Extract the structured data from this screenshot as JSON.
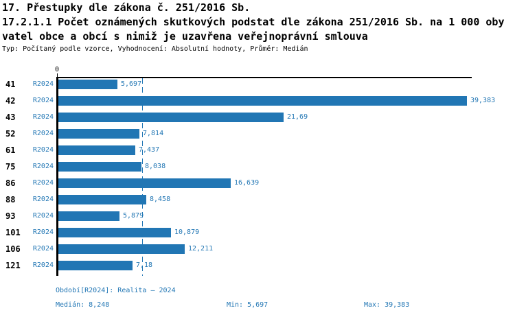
{
  "header": {
    "title_line1": "17. Přestupky dle zákona č. 251/2016 Sb.",
    "title_line2": "17.2.1.1 Počet oznámených skutkových podstat dle zákona 251/2016 Sb. na 1 000 oby",
    "title_line3": "vatel obce a obcí s nimiž je uzavřena veřejnoprávní smlouva",
    "subtitle": "Typ: Počítaný podle vzorce, Vyhodnocení: Absolutní hodnoty, Průměr: Medián"
  },
  "colors": {
    "accent_blue": "#2176B4",
    "axis_black": "#000000",
    "background": "#FFFFFF"
  },
  "chart_data": {
    "type": "bar",
    "orientation": "horizontal",
    "title": "17.2.1.1 Počet oznámených skutkových podstat dle zákona 251/2016 Sb. na 1 000 obyvatel obce a obcí s nimiž je uzavřena veřejnoprávní smlouva",
    "categories": [
      "41",
      "42",
      "43",
      "52",
      "61",
      "75",
      "86",
      "88",
      "93",
      "101",
      "106",
      "121"
    ],
    "series_label": "R2024",
    "values": [
      5.697,
      39.383,
      21.69,
      7.814,
      7.437,
      8.038,
      16.639,
      8.458,
      5.879,
      10.879,
      12.211,
      7.18
    ],
    "value_labels": [
      "5,697",
      "39,383",
      "21,69",
      "7,814",
      "7,437",
      "8,038",
      "16,639",
      "8,458",
      "5,879",
      "10,879",
      "12,211",
      "7,18"
    ],
    "xlim": [
      0,
      39.383
    ],
    "origin_tick_label": "0",
    "median_value": 8.248,
    "grid": false,
    "legend_position": "none",
    "bar_color": "#2176B4",
    "median_line_color": "#2176B4",
    "median_line_style": "dashed"
  },
  "footer": {
    "period": "Období[R2024]: Realita – 2024",
    "median": "Medián: 8,248",
    "min": "Min: 5,697",
    "max": "Max: 39,383"
  }
}
